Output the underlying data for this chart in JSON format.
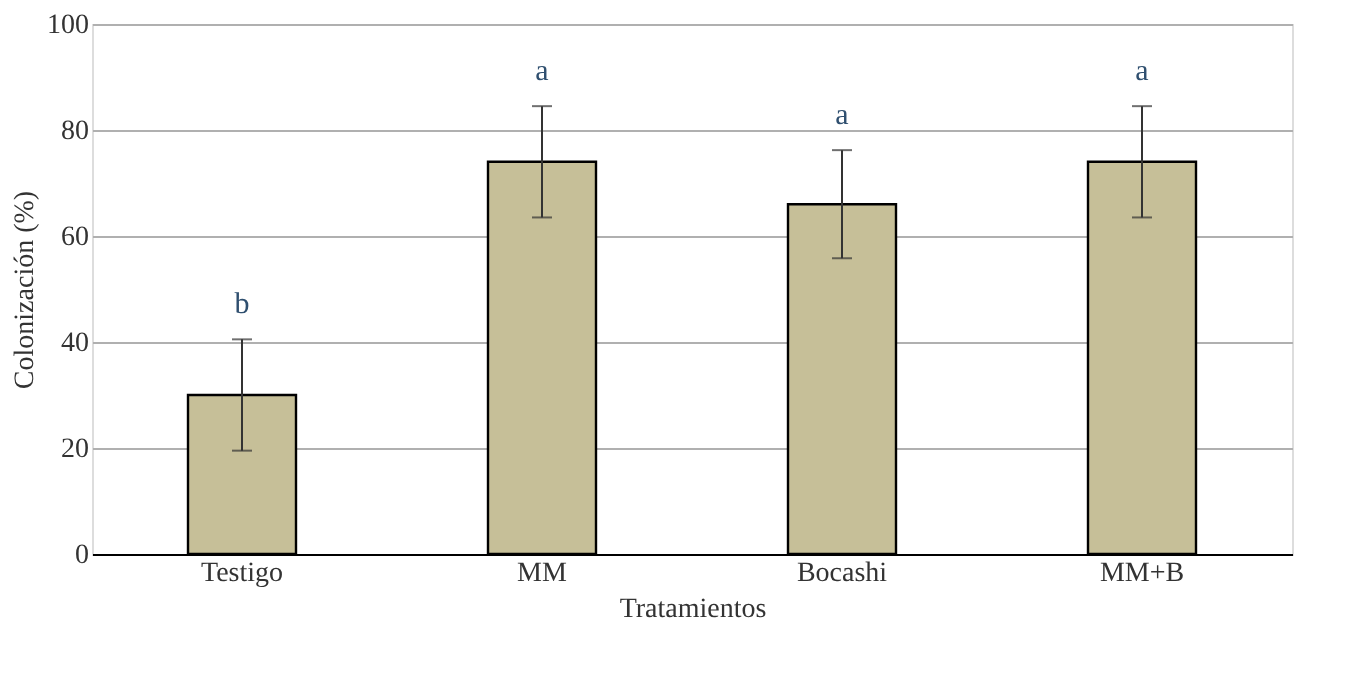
{
  "chart_data": {
    "type": "bar",
    "xlabel": "Tratamientos",
    "ylabel": "Colonización (%)",
    "categories": [
      "Testigo",
      "MM",
      "Bocashi",
      "MM+B"
    ],
    "values": [
      30,
      74,
      66,
      74
    ],
    "errors": [
      10.5,
      10.5,
      10.2,
      10.5
    ],
    "color": "#c6bf98",
    "ylim": [
      0,
      100
    ],
    "yticks": [
      0,
      20,
      40,
      60,
      80,
      100
    ],
    "grid": "y",
    "annotations": [
      {
        "text": "b",
        "x": "Testigo",
        "y": 40.5
      },
      {
        "text": "a",
        "x": "MM",
        "y": 84.5
      },
      {
        "text": "a",
        "x": "Bocashi",
        "y": 76.2
      },
      {
        "text": "a",
        "x": "MM+B",
        "y": 84.5
      }
    ]
  }
}
